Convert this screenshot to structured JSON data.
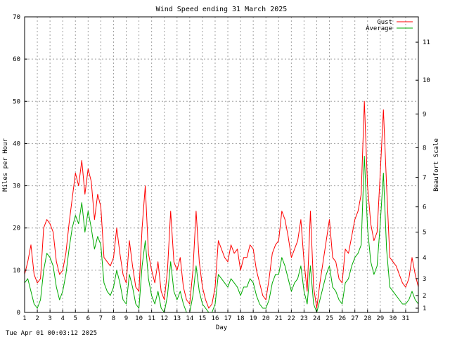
{
  "chart_data": {
    "type": "line",
    "title": "Wind Speed ending 31 March 2025",
    "xlabel": "Day",
    "ylabel": "Miles per Hour",
    "y2label": "Beaufort Scale",
    "timestamp": "Tue Apr 01 00:03:12 2025",
    "xlim": [
      1,
      32
    ],
    "ylim": [
      0,
      70
    ],
    "y_ticks": [
      0,
      10,
      20,
      30,
      40,
      50,
      60,
      70
    ],
    "x_ticks": [
      1,
      2,
      3,
      4,
      5,
      6,
      7,
      8,
      9,
      10,
      11,
      12,
      13,
      14,
      15,
      16,
      17,
      18,
      19,
      20,
      21,
      22,
      23,
      24,
      25,
      26,
      27,
      28,
      29,
      30,
      31
    ],
    "beaufort_ticks": [
      {
        "label": "1",
        "mph": 1
      },
      {
        "label": "2",
        "mph": 4
      },
      {
        "label": "3",
        "mph": 8
      },
      {
        "label": "4",
        "mph": 13
      },
      {
        "label": "5",
        "mph": 19
      },
      {
        "label": "6",
        "mph": 25
      },
      {
        "label": "7",
        "mph": 32
      },
      {
        "label": "8",
        "mph": 39
      },
      {
        "label": "9",
        "mph": 47
      },
      {
        "label": "10",
        "mph": 55
      },
      {
        "label": "11",
        "mph": 64
      }
    ],
    "grid": true,
    "legend_position": "top-right",
    "series": [
      {
        "name": "Gust",
        "color": "#ff0000",
        "x": [
          1.0,
          1.25,
          1.5,
          1.75,
          2.0,
          2.25,
          2.5,
          2.75,
          3.0,
          3.25,
          3.5,
          3.75,
          4.0,
          4.25,
          4.5,
          4.75,
          5.0,
          5.25,
          5.5,
          5.75,
          6.0,
          6.25,
          6.5,
          6.75,
          7.0,
          7.25,
          7.5,
          7.75,
          8.0,
          8.25,
          8.5,
          8.75,
          9.0,
          9.25,
          9.5,
          9.75,
          10.0,
          10.25,
          10.5,
          10.75,
          11.0,
          11.25,
          11.5,
          11.75,
          12.0,
          12.25,
          12.5,
          12.75,
          13.0,
          13.25,
          13.5,
          13.75,
          14.0,
          14.25,
          14.5,
          14.75,
          15.0,
          15.25,
          15.5,
          15.75,
          16.0,
          16.25,
          16.5,
          16.75,
          17.0,
          17.25,
          17.5,
          17.75,
          18.0,
          18.25,
          18.5,
          18.75,
          19.0,
          19.25,
          19.5,
          19.75,
          20.0,
          20.25,
          20.5,
          20.75,
          21.0,
          21.25,
          21.5,
          21.75,
          22.0,
          22.25,
          22.5,
          22.75,
          23.0,
          23.25,
          23.5,
          23.75,
          24.0,
          24.25,
          24.5,
          24.75,
          25.0,
          25.25,
          25.5,
          25.75,
          26.0,
          26.25,
          26.5,
          26.75,
          27.0,
          27.25,
          27.5,
          27.75,
          28.0,
          28.25,
          28.5,
          28.75,
          29.0,
          29.25,
          29.5,
          29.75,
          30.0,
          30.25,
          30.5,
          30.75,
          31.0,
          31.25,
          31.5,
          31.75,
          32.0
        ],
        "values": [
          9,
          12,
          16,
          9,
          7,
          8,
          20,
          22,
          21,
          19,
          12,
          9,
          10,
          14,
          21,
          27,
          33,
          30,
          36,
          28,
          34,
          31,
          22,
          28,
          25,
          13,
          12,
          11,
          13,
          20,
          14,
          9,
          7,
          17,
          11,
          6,
          5,
          20,
          30,
          14,
          10,
          7,
          12,
          5,
          3,
          10,
          24,
          12,
          10,
          13,
          6,
          3,
          2,
          10,
          24,
          12,
          6,
          3,
          1,
          2,
          6,
          17,
          15,
          13,
          12,
          16,
          14,
          15,
          10,
          13,
          13,
          16,
          15,
          10,
          7,
          4,
          3,
          8,
          14,
          16,
          17,
          24,
          22,
          18,
          13,
          15,
          17,
          22,
          12,
          5,
          24,
          6,
          1,
          7,
          12,
          17,
          22,
          13,
          12,
          8,
          7,
          15,
          14,
          18,
          22,
          24,
          28,
          50,
          30,
          21,
          17,
          19,
          33,
          48,
          30,
          13,
          12,
          11,
          9,
          7,
          6,
          8,
          13,
          9,
          6
        ]
      },
      {
        "name": "Average",
        "color": "#00aa00",
        "x": [
          1.0,
          1.25,
          1.5,
          1.75,
          2.0,
          2.25,
          2.5,
          2.75,
          3.0,
          3.25,
          3.5,
          3.75,
          4.0,
          4.25,
          4.5,
          4.75,
          5.0,
          5.25,
          5.5,
          5.75,
          6.0,
          6.25,
          6.5,
          6.75,
          7.0,
          7.25,
          7.5,
          7.75,
          8.0,
          8.25,
          8.5,
          8.75,
          9.0,
          9.25,
          9.5,
          9.75,
          10.0,
          10.25,
          10.5,
          10.75,
          11.0,
          11.25,
          11.5,
          11.75,
          12.0,
          12.25,
          12.5,
          12.75,
          13.0,
          13.25,
          13.5,
          13.75,
          14.0,
          14.25,
          14.5,
          14.75,
          15.0,
          15.25,
          15.5,
          15.75,
          16.0,
          16.25,
          16.5,
          16.75,
          17.0,
          17.25,
          17.5,
          17.75,
          18.0,
          18.25,
          18.5,
          18.75,
          19.0,
          19.25,
          19.5,
          19.75,
          20.0,
          20.25,
          20.5,
          20.75,
          21.0,
          21.25,
          21.5,
          21.75,
          22.0,
          22.25,
          22.5,
          22.75,
          23.0,
          23.25,
          23.5,
          23.75,
          24.0,
          24.25,
          24.5,
          24.75,
          25.0,
          25.25,
          25.5,
          25.75,
          26.0,
          26.25,
          26.5,
          26.75,
          27.0,
          27.25,
          27.5,
          27.75,
          28.0,
          28.25,
          28.5,
          28.75,
          29.0,
          29.25,
          29.5,
          29.75,
          30.0,
          30.25,
          30.5,
          30.75,
          31.0,
          31.25,
          31.5,
          31.75,
          32.0
        ],
        "values": [
          7,
          8,
          5,
          2,
          1,
          3,
          10,
          14,
          13,
          11,
          6,
          3,
          5,
          9,
          15,
          20,
          23,
          21,
          26,
          19,
          24,
          20,
          15,
          18,
          16,
          7,
          5,
          4,
          6,
          10,
          7,
          3,
          2,
          9,
          6,
          2,
          1,
          11,
          17,
          8,
          4,
          2,
          5,
          1,
          0,
          4,
          12,
          5,
          3,
          5,
          2,
          0,
          0,
          4,
          11,
          5,
          2,
          1,
          0,
          0,
          2,
          9,
          8,
          7,
          6,
          8,
          7,
          6,
          4,
          6,
          6,
          8,
          7,
          4,
          2,
          1,
          1,
          3,
          7,
          9,
          9,
          13,
          11,
          8,
          5,
          7,
          8,
          11,
          5,
          2,
          11,
          2,
          0,
          3,
          6,
          9,
          11,
          6,
          5,
          3,
          2,
          7,
          8,
          11,
          13,
          14,
          16,
          37,
          20,
          12,
          9,
          11,
          21,
          33,
          15,
          6,
          5,
          4,
          3,
          2,
          2,
          3,
          5,
          3,
          2
        ]
      }
    ]
  }
}
